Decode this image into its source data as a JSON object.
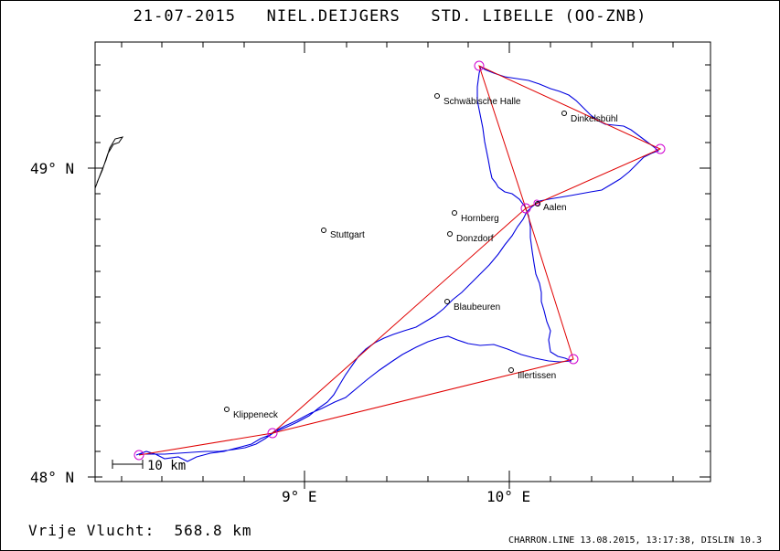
{
  "title": "21-07-2015   NIEL.DEIJGERS   STD. LIBELLE (OO-ZNB)",
  "axes": {
    "y_labels": [
      "49° N",
      "48° N"
    ],
    "x_labels": [
      "9° E",
      "10° E"
    ]
  },
  "cities": [
    {
      "name": "Schwäbische Halle"
    },
    {
      "name": "Dinkelsbühl"
    },
    {
      "name": "Aalen"
    },
    {
      "name": "Hornberg"
    },
    {
      "name": "Donzdorf"
    },
    {
      "name": "Stuttgart"
    },
    {
      "name": "Blaubeuren"
    },
    {
      "name": "Illertissen"
    },
    {
      "name": "Klippeneck"
    }
  ],
  "scale_label": "10 km",
  "distance_text": "Vrije Vlucht:  568.8 km",
  "footer_text": "CHARRON.LINE 13.08.2015, 13:17:38, DISLIN 10.3",
  "colors": {
    "task_line": "#e00000",
    "track": "#0000e0",
    "turnpoint": "#d000d0",
    "frame": "#000000"
  }
}
